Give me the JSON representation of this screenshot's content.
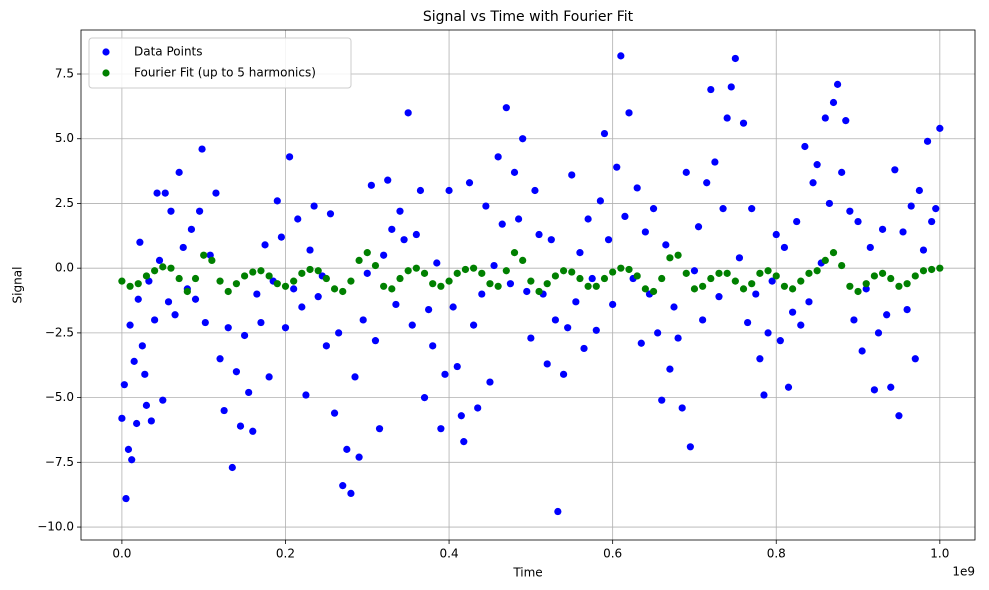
{
  "chart_data": {
    "type": "scatter",
    "title": "Signal vs Time with Fourier Fit",
    "x_label": "Time",
    "y_label": "Signal",
    "x_offset_label": "1e9",
    "xlim": [
      -50000000,
      1043000000
    ],
    "ylim": [
      -10.5,
      9.2
    ],
    "xticks": [
      {
        "value": 0,
        "label": "0.0"
      },
      {
        "value": 200000000,
        "label": "0.2"
      },
      {
        "value": 400000000,
        "label": "0.4"
      },
      {
        "value": 600000000,
        "label": "0.6"
      },
      {
        "value": 800000000,
        "label": "0.8"
      },
      {
        "value": 1000000000,
        "label": "1.0"
      }
    ],
    "yticks": [
      {
        "value": -10,
        "label": "−10.0"
      },
      {
        "value": -7.5,
        "label": "−7.5"
      },
      {
        "value": -5,
        "label": "−5.0"
      },
      {
        "value": -2.5,
        "label": "−2.5"
      },
      {
        "value": 0,
        "label": "0.0"
      },
      2.5,
      {
        "value": 5,
        "label": "5.0"
      },
      7.5
    ],
    "grid": true,
    "legend": "upper left",
    "series": [
      {
        "name": "Data Points",
        "color": "#0000ff",
        "x": [
          0,
          3000000,
          5000000,
          8000000,
          10000000,
          12000000,
          15000000,
          18000000,
          20000000,
          22000000,
          25000000,
          28000000,
          30000000,
          33000000,
          36000000,
          40000000,
          43000000,
          46000000,
          50000000,
          53000000,
          57000000,
          60000000,
          65000000,
          70000000,
          75000000,
          80000000,
          85000000,
          90000000,
          95000000,
          98000000,
          102000000,
          108000000,
          115000000,
          120000000,
          125000000,
          130000000,
          135000000,
          140000000,
          145000000,
          150000000,
          155000000,
          160000000,
          165000000,
          170000000,
          175000000,
          180000000,
          185000000,
          190000000,
          195000000,
          200000000,
          205000000,
          210000000,
          215000000,
          220000000,
          225000000,
          230000000,
          235000000,
          240000000,
          245000000,
          250000000,
          255000000,
          260000000,
          265000000,
          270000000,
          275000000,
          280000000,
          285000000,
          290000000,
          295000000,
          300000000,
          305000000,
          310000000,
          315000000,
          320000000,
          325000000,
          330000000,
          335000000,
          340000000,
          345000000,
          350000000,
          355000000,
          360000000,
          365000000,
          370000000,
          375000000,
          380000000,
          385000000,
          390000000,
          395000000,
          400000000,
          405000000,
          410000000,
          415000000,
          418000000,
          425000000,
          430000000,
          435000000,
          440000000,
          445000000,
          450000000,
          455000000,
          460000000,
          465000000,
          470000000,
          475000000,
          480000000,
          485000000,
          490000000,
          495000000,
          500000000,
          505000000,
          510000000,
          515000000,
          520000000,
          525000000,
          530000000,
          533000000,
          540000000,
          545000000,
          550000000,
          555000000,
          560000000,
          565000000,
          570000000,
          575000000,
          580000000,
          585000000,
          590000000,
          595000000,
          600000000,
          605000000,
          610000000,
          615000000,
          620000000,
          625000000,
          630000000,
          635000000,
          640000000,
          645000000,
          650000000,
          655000000,
          660000000,
          665000000,
          670000000,
          675000000,
          680000000,
          685000000,
          690000000,
          695000000,
          700000000,
          705000000,
          710000000,
          715000000,
          720000000,
          725000000,
          730000000,
          735000000,
          740000000,
          745000000,
          750000000,
          755000000,
          760000000,
          765000000,
          770000000,
          775000000,
          780000000,
          785000000,
          790000000,
          795000000,
          800000000,
          805000000,
          810000000,
          815000000,
          820000000,
          825000000,
          830000000,
          835000000,
          840000000,
          845000000,
          850000000,
          855000000,
          860000000,
          865000000,
          870000000,
          875000000,
          880000000,
          885000000,
          890000000,
          895000000,
          900000000,
          905000000,
          910000000,
          915000000,
          920000000,
          925000000,
          930000000,
          935000000,
          940000000,
          945000000,
          950000000,
          955000000,
          960000000,
          965000000,
          970000000,
          975000000,
          980000000,
          985000000,
          990000000,
          995000000,
          1000000000
        ],
        "values": [
          -5.8,
          -4.5,
          -8.9,
          -7.0,
          -2.2,
          -7.4,
          -3.6,
          -6.0,
          -1.2,
          1.0,
          -3.0,
          -4.1,
          -5.3,
          -0.5,
          -5.9,
          -2.0,
          2.9,
          0.3,
          -5.1,
          2.9,
          -1.3,
          2.2,
          -1.8,
          3.7,
          0.8,
          -0.8,
          1.5,
          -1.2,
          2.2,
          4.6,
          -2.1,
          0.5,
          2.9,
          -3.5,
          -5.5,
          -2.3,
          -7.7,
          -4.0,
          -6.1,
          -2.6,
          -4.8,
          -6.3,
          -1.0,
          -2.1,
          0.9,
          -4.2,
          -0.5,
          2.6,
          1.2,
          -2.3,
          4.3,
          -0.8,
          1.9,
          -1.5,
          -4.9,
          0.7,
          2.4,
          -1.1,
          -0.3,
          -3.0,
          2.1,
          -5.6,
          -2.5,
          -8.4,
          -7.0,
          -8.7,
          -4.2,
          -7.3,
          -2.0,
          -0.2,
          3.2,
          -2.8,
          -6.2,
          0.5,
          3.4,
          1.5,
          -1.4,
          2.2,
          1.1,
          6.0,
          -2.2,
          1.3,
          3.0,
          -5.0,
          -1.6,
          -3.0,
          0.2,
          -6.2,
          -4.1,
          3.0,
          -1.5,
          -3.8,
          -5.7,
          -6.7,
          3.3,
          -2.2,
          -5.4,
          -1.0,
          2.4,
          -4.4,
          0.1,
          4.3,
          1.7,
          6.2,
          -0.6,
          3.7,
          1.9,
          5.0,
          -0.9,
          -2.7,
          3.0,
          1.3,
          -1.0,
          -3.7,
          1.1,
          -2.0,
          -9.4,
          -4.1,
          -2.3,
          3.6,
          -1.3,
          0.6,
          -3.1,
          1.9,
          -0.4,
          -2.4,
          2.6,
          5.2,
          1.1,
          -1.4,
          3.9,
          8.2,
          2.0,
          6.0,
          -0.4,
          3.1,
          -2.9,
          1.4,
          -1.0,
          2.3,
          -2.5,
          -5.1,
          0.9,
          -3.9,
          -1.5,
          -2.7,
          -5.4,
          3.7,
          -6.9,
          -0.1,
          1.6,
          -2.0,
          3.3,
          6.9,
          4.1,
          -1.1,
          2.3,
          5.8,
          7.0,
          8.1,
          0.4,
          5.6,
          -2.1,
          2.3,
          -1.0,
          -3.5,
          -4.9,
          -2.5,
          -0.5,
          1.3,
          -2.8,
          0.8,
          -4.6,
          -1.7,
          1.8,
          -2.2,
          4.7,
          -1.3,
          3.3,
          4.0,
          0.2,
          5.8,
          2.5,
          6.4,
          7.1,
          3.7,
          5.7,
          2.2,
          -2.0,
          1.8,
          -3.2,
          -0.8,
          0.8,
          -4.7,
          -2.5,
          1.5,
          -1.8,
          -4.6,
          3.8,
          -5.7,
          1.4,
          -1.6,
          2.4,
          -3.5,
          3.0,
          0.7,
          4.9,
          1.8,
          2.3,
          5.4
        ]
      },
      {
        "name": "Fourier Fit (up to 5 harmonics)",
        "color": "#008000",
        "x": [
          0,
          10000000,
          20000000,
          30000000,
          40000000,
          50000000,
          60000000,
          70000000,
          80000000,
          90000000,
          100000000,
          110000000,
          120000000,
          130000000,
          140000000,
          150000000,
          160000000,
          170000000,
          180000000,
          190000000,
          200000000,
          210000000,
          220000000,
          230000000,
          240000000,
          250000000,
          260000000,
          270000000,
          280000000,
          290000000,
          300000000,
          310000000,
          320000000,
          330000000,
          340000000,
          350000000,
          360000000,
          370000000,
          380000000,
          390000000,
          400000000,
          410000000,
          420000000,
          430000000,
          440000000,
          450000000,
          460000000,
          470000000,
          480000000,
          490000000,
          500000000,
          510000000,
          520000000,
          530000000,
          540000000,
          550000000,
          560000000,
          570000000,
          580000000,
          590000000,
          600000000,
          610000000,
          620000000,
          630000000,
          640000000,
          650000000,
          660000000,
          670000000,
          680000000,
          690000000,
          700000000,
          710000000,
          720000000,
          730000000,
          740000000,
          750000000,
          760000000,
          770000000,
          780000000,
          790000000,
          800000000,
          810000000,
          820000000,
          830000000,
          840000000,
          850000000,
          860000000,
          870000000,
          880000000,
          890000000,
          900000000,
          910000000,
          920000000,
          930000000,
          940000000,
          950000000,
          960000000,
          970000000,
          980000000,
          990000000,
          1000000000
        ],
        "values": [
          -0.5,
          -0.7,
          -0.6,
          -0.3,
          -0.1,
          0.05,
          0.0,
          -0.4,
          -0.9,
          -0.4,
          0.5,
          0.3,
          -0.5,
          -0.9,
          -0.6,
          -0.3,
          -0.15,
          -0.1,
          -0.3,
          -0.6,
          -0.7,
          -0.5,
          -0.2,
          -0.05,
          -0.1,
          -0.4,
          -0.8,
          -0.9,
          -0.5,
          0.3,
          0.6,
          0.1,
          -0.7,
          -0.8,
          -0.4,
          -0.1,
          0.0,
          -0.2,
          -0.6,
          -0.7,
          -0.5,
          -0.2,
          -0.05,
          0.0,
          -0.2,
          -0.6,
          -0.7,
          -0.1,
          0.6,
          0.3,
          -0.5,
          -0.9,
          -0.6,
          -0.3,
          -0.1,
          -0.15,
          -0.4,
          -0.7,
          -0.7,
          -0.4,
          -0.15,
          0.0,
          -0.05,
          -0.3,
          -0.8,
          -0.9,
          -0.4,
          0.4,
          0.5,
          -0.2,
          -0.8,
          -0.7,
          -0.4,
          -0.2,
          -0.2,
          -0.5,
          -0.8,
          -0.6,
          -0.2,
          -0.1,
          -0.3,
          -0.7,
          -0.8,
          -0.5,
          -0.2,
          -0.1,
          0.3,
          0.6,
          0.1,
          -0.7,
          -0.9,
          -0.6,
          -0.3,
          -0.2,
          -0.4,
          -0.7,
          -0.6,
          -0.3,
          -0.1,
          -0.05,
          0.0
        ]
      }
    ]
  }
}
